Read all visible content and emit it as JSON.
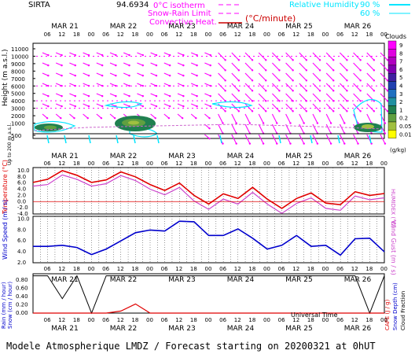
{
  "header": {
    "station": "SIRTA",
    "coords": "94.6934",
    "isotherm_label": "0°C isotherm",
    "snow_rain_label": "Snow-Rain Limit",
    "convective_label": "Convective Heat.",
    "convective_unit": "(°C/minute)",
    "rh_label": "Relative Humidity",
    "rh_90": "90 %",
    "rh_60": "60 %",
    "colors": {
      "magenta": "#ff00ff",
      "red": "#cc0000",
      "cyan": "#00e5ff"
    }
  },
  "footer": {
    "text": "Modele Atmospherique LMDZ / Forecast starting on 20200321 at 0hUT",
    "universal_time": "Universal Time"
  },
  "days": [
    "MAR 21",
    "MAR 22",
    "MAR 23",
    "MAR 24",
    "MAR 25",
    "MAR 26"
  ],
  "hour_ticks": [
    "06",
    "12",
    "18",
    "00"
  ],
  "chart_data": [
    {
      "type": "heatmap",
      "name": "clouds",
      "ylabel": "Height (m a.s.l.)",
      "ylabel_low": "Up to 200 m a.s.l.",
      "y_ticks": [
        "11000",
        "10000",
        "9000",
        "8000",
        "7000",
        "6000",
        "5000",
        "4000",
        "3000",
        "2000",
        "1000",
        "500",
        "0"
      ],
      "legend_title": "Clouds",
      "legend_unit": "(g/kg)",
      "legend_levels": [
        "9",
        "8",
        "7",
        "6",
        "5",
        "4",
        "3",
        "2",
        "1",
        "0.2",
        "0.05",
        "0.01"
      ],
      "legend_colors": [
        "#ff00ff",
        "#e000e0",
        "#b000c0",
        "#8000b0",
        "#4020a0",
        "#2040b0",
        "#2070c0",
        "#2090a0",
        "#208050",
        "#60a040",
        "#a0c040",
        "#ffff00"
      ]
    },
    {
      "type": "line",
      "name": "temperature",
      "ylabel": "Temperature (°C)",
      "ylabel_right": "HUMIDEX (°C)",
      "y_ticks": [
        "10.0",
        "8.0",
        "6.0",
        "4.0",
        "2.0",
        "0.0",
        "-2.0",
        "-4.0"
      ],
      "ylim": [
        -4,
        11
      ],
      "x_hours": [
        0,
        6,
        12,
        18,
        24,
        30,
        36,
        42,
        48,
        54,
        60,
        66,
        72,
        78,
        84,
        90,
        96,
        102,
        108,
        114,
        120,
        126,
        132,
        138,
        144
      ],
      "series": [
        {
          "values": [
            6.2,
            7.2,
            10.0,
            8.5,
            6.2,
            7.0,
            9.6,
            8.0,
            5.5,
            3.6,
            6.0,
            2.0,
            -0.8,
            2.5,
            1.0,
            4.6,
            0.8,
            -2.2,
            1.0,
            2.8,
            -0.5,
            -1.0,
            3.2,
            2.0,
            2.6
          ]
        },
        {
          "values": [
            5.0,
            5.5,
            8.6,
            7.2,
            5.0,
            5.8,
            8.4,
            6.8,
            4.0,
            2.2,
            4.6,
            0.2,
            -2.5,
            0.8,
            -0.8,
            3.0,
            -0.8,
            -3.8,
            -0.6,
            1.2,
            -2.2,
            -2.8,
            1.8,
            0.6,
            1.2
          ]
        }
      ]
    },
    {
      "type": "line",
      "name": "wind",
      "ylabel": "Wind Speed (m / s)",
      "ylabel_right": "Wind Gust (m / s)",
      "y_ticks": [
        "10.0",
        "8.0",
        "6.0",
        "4.0",
        "2.0"
      ],
      "ylim": [
        2,
        10.5
      ],
      "x_hours": [
        0,
        6,
        12,
        18,
        24,
        30,
        36,
        42,
        48,
        54,
        60,
        66,
        72,
        78,
        84,
        90,
        96,
        102,
        108,
        114,
        120,
        126,
        132,
        138,
        144
      ],
      "series": [
        {
          "values": [
            5.0,
            5.0,
            5.2,
            4.8,
            3.5,
            4.5,
            6.0,
            7.5,
            8.0,
            7.8,
            9.6,
            9.5,
            7.0,
            7.0,
            8.2,
            6.5,
            4.5,
            5.2,
            7.0,
            5.0,
            5.2,
            3.4,
            6.4,
            6.5,
            4.0
          ]
        }
      ]
    },
    {
      "type": "line",
      "name": "precipitation",
      "ylabel": "Rain (mm / hour)",
      "ylabel2": "Snow (cm / hour)",
      "ylabel_right": "CAPE (J / g)",
      "ylabel_right2": "Snow Depth (cm)",
      "ylabel_right3": "Cloud Fraction",
      "y_ticks": [
        "0.80",
        "0.60",
        "0.40",
        "0.20",
        "0.00"
      ],
      "ylim": [
        0,
        0.95
      ],
      "x_hours": [
        0,
        6,
        12,
        18,
        24,
        30,
        36,
        42,
        48,
        54,
        60,
        66,
        72,
        78,
        84,
        90,
        96,
        102,
        108,
        114,
        120,
        126,
        132,
        138,
        144
      ],
      "series": [
        {
          "values": [
            0.9,
            0.9,
            0.35,
            0.9,
            0.0,
            0.9,
            0.9,
            0.9,
            0.9,
            0.9,
            0.9,
            0.9,
            0.9,
            0.9,
            0.9,
            0.9,
            0.9,
            0.9,
            0.9,
            0.9,
            0.9,
            0.9,
            0.9,
            0.0,
            0.9
          ]
        },
        {
          "values": [
            0,
            0,
            0,
            0,
            0,
            0,
            0.05,
            0.22,
            0,
            0,
            0,
            0,
            0,
            0,
            0,
            0,
            0,
            0,
            0,
            0,
            0,
            0,
            0,
            0,
            0
          ]
        }
      ]
    }
  ]
}
